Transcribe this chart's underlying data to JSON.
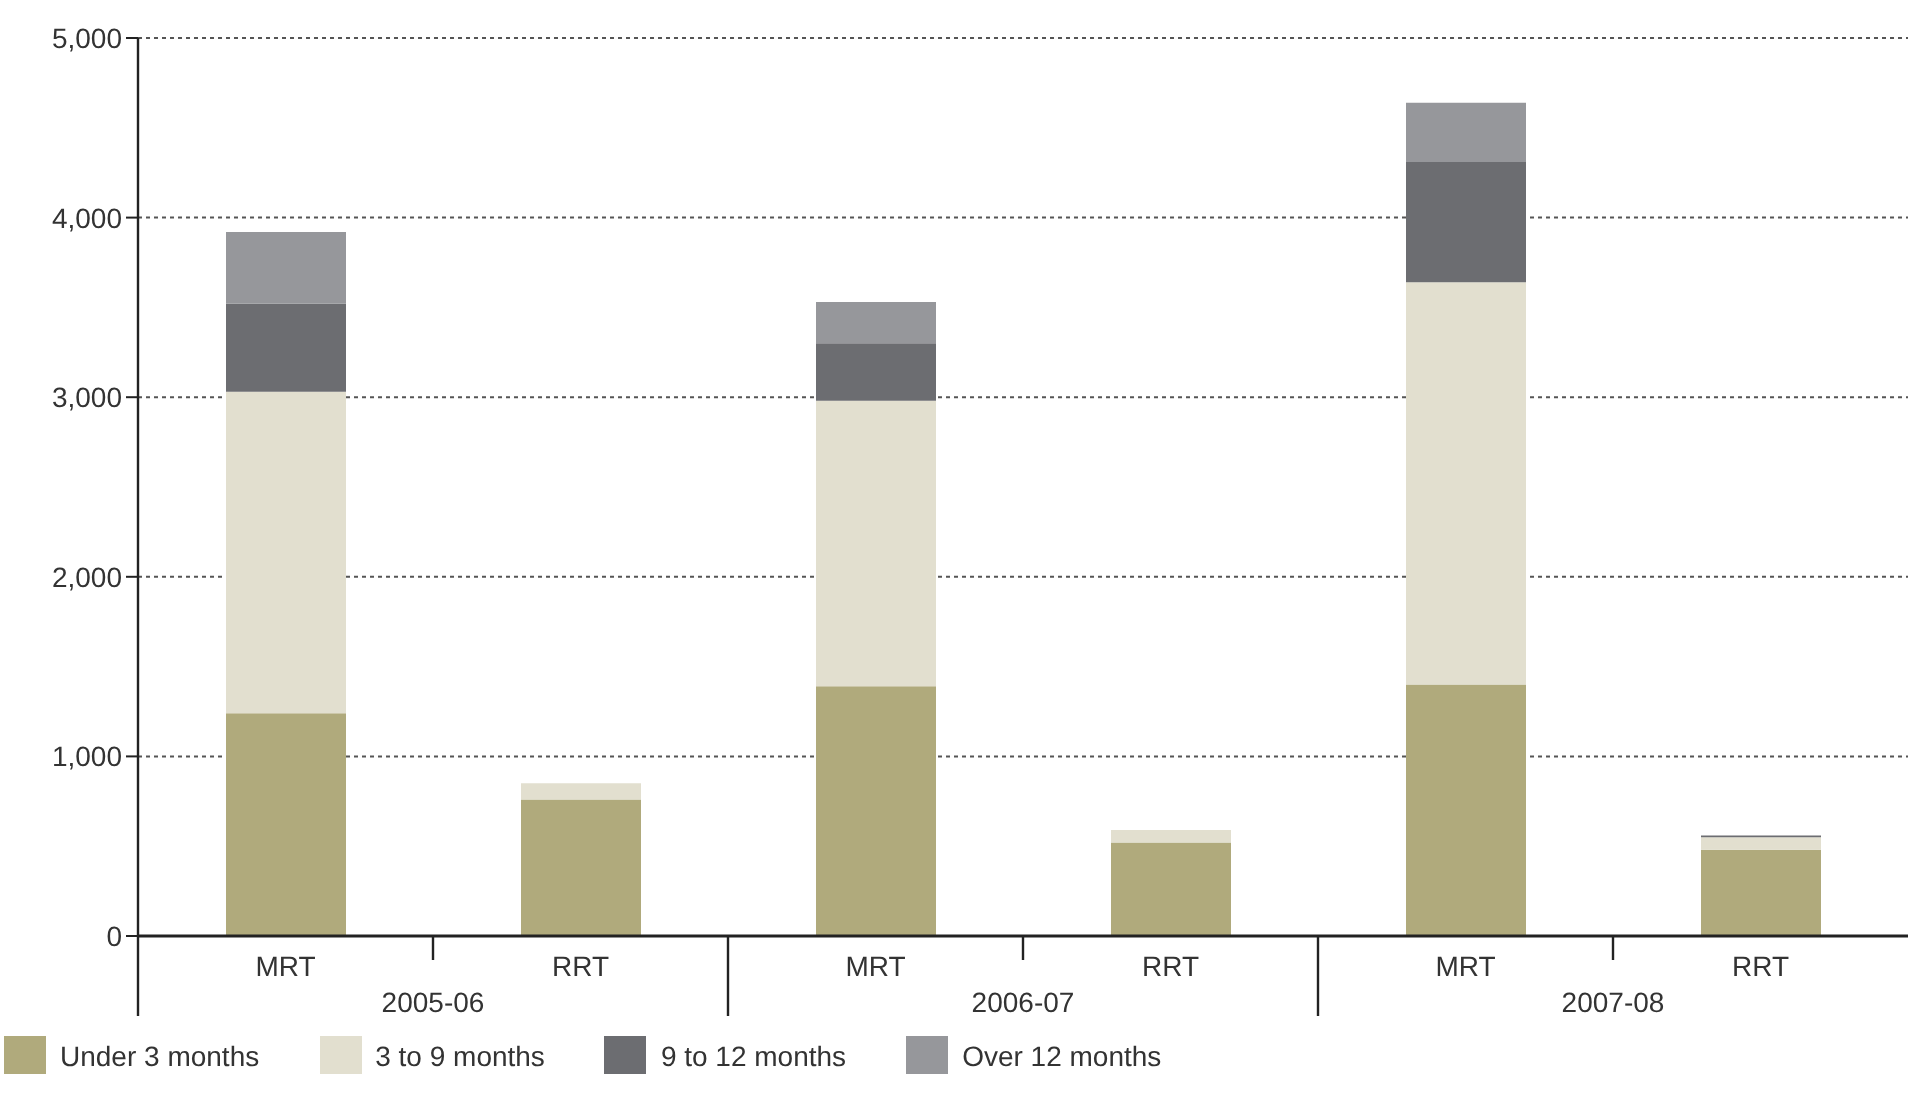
{
  "chart_data": {
    "type": "bar",
    "stacked": true,
    "categories": [
      "MRT",
      "RRT",
      "MRT",
      "RRT",
      "MRT",
      "RRT"
    ],
    "series": [
      {
        "name": "Under 3 months",
        "color": "#b0aa7c",
        "values": [
          1240,
          760,
          1390,
          520,
          1400,
          480
        ]
      },
      {
        "name": "3 to 9 months",
        "color": "#e2dfcf",
        "values": [
          1790,
          90,
          1590,
          70,
          2240,
          70
        ]
      },
      {
        "name": "9 to 12 months",
        "color": "#6c6d71",
        "values": [
          490,
          0,
          320,
          0,
          670,
          10
        ]
      },
      {
        "name": "Over 12 months",
        "color": "#96979b",
        "values": [
          400,
          0,
          230,
          0,
          330,
          0
        ]
      }
    ],
    "ylim": [
      0,
      5000
    ],
    "yticks": [
      0,
      {
        "value": 1000,
        "label": "1,000"
      },
      {
        "value": 2000,
        "label": "2,000"
      },
      {
        "value": 3000,
        "label": "3,000"
      },
      {
        "value": 4000,
        "label": "4,000"
      },
      {
        "value": 5000,
        "label": "5,000"
      }
    ],
    "grid": "y",
    "legend": "bottom",
    "annotations": [
      "2005-06",
      "2006-07",
      "2007-08"
    ]
  }
}
